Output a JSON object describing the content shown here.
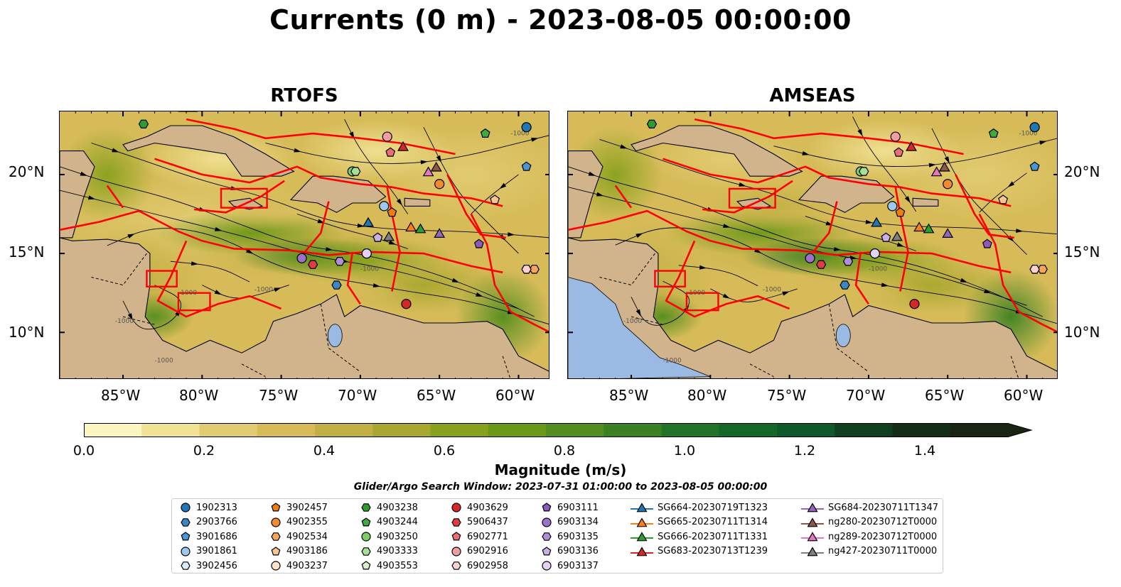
{
  "title": "Currents (0 m) - 2023-08-05 00:00:00",
  "panels": [
    {
      "title": "RTOFS",
      "key": "rtofs"
    },
    {
      "title": "AMSEAS",
      "key": "amseas"
    }
  ],
  "map": {
    "lon_range": [
      -89,
      -58
    ],
    "lat_range": [
      7,
      24
    ],
    "lon_ticks": [
      -85,
      -80,
      -75,
      -70,
      -65,
      -60
    ],
    "lon_tick_labels": [
      "85°W",
      "80°W",
      "75°W",
      "70°W",
      "65°W",
      "60°W"
    ],
    "lat_ticks": [
      10,
      15,
      20
    ],
    "lat_tick_labels": [
      "10°N",
      "15°N",
      "20°N"
    ],
    "land_color": "#d2b48c",
    "no_data_color": "#9ab9e3",
    "eez_line_color": "#ff0000",
    "contour_label": "-1000"
  },
  "colorbar": {
    "label": "Magnitude (m/s)",
    "min": 0.0,
    "max": 1.5,
    "extend": "max",
    "tick_values": [
      0.0,
      0.2,
      0.4,
      0.6,
      0.8,
      1.0,
      1.2,
      1.4
    ],
    "tick_labels": [
      "0.0",
      "0.2",
      "0.4",
      "0.6",
      "0.8",
      "1.0",
      "1.2",
      "1.4"
    ],
    "colors": [
      "#fbf6c0",
      "#f0e193",
      "#e2cc73",
      "#d6bb58",
      "#c3b044",
      "#a8a72f",
      "#88a11c",
      "#6c9818",
      "#538d1d",
      "#3b8122",
      "#217427",
      "#136728",
      "#0e5829",
      "#103f20",
      "#142d18",
      "#1a2414"
    ]
  },
  "search_window": "Glider/Argo Search Window: 2023-07-31 01:00:00 to 2023-08-05 00:00:00",
  "legend": {
    "items": [
      {
        "label": "1902313",
        "marker": "circle",
        "color": "#1f77b4"
      },
      {
        "label": "2903766",
        "marker": "hexagon",
        "color": "#3a87c4"
      },
      {
        "label": "3901686",
        "marker": "pentagon",
        "color": "#4a97d4"
      },
      {
        "label": "3901861",
        "marker": "circle",
        "color": "#9ec8ef"
      },
      {
        "label": "3902456",
        "marker": "hexagon",
        "color": "#d6ecfb"
      },
      {
        "label": "3902457",
        "marker": "pentagon",
        "color": "#ee7d11"
      },
      {
        "label": "4902355",
        "marker": "circle",
        "color": "#f28b30"
      },
      {
        "label": "4902534",
        "marker": "hexagon",
        "color": "#f6a55c"
      },
      {
        "label": "4903186",
        "marker": "pentagon",
        "color": "#f9c592"
      },
      {
        "label": "4903237",
        "marker": "circle",
        "color": "#fde3c8"
      },
      {
        "label": "4903238",
        "marker": "hexagon",
        "color": "#2e9b2e"
      },
      {
        "label": "4903244",
        "marker": "pentagon",
        "color": "#3faa3f"
      },
      {
        "label": "4903250",
        "marker": "circle",
        "color": "#7ccc6a"
      },
      {
        "label": "4903333",
        "marker": "hexagon",
        "color": "#a8e095"
      },
      {
        "label": "4903553",
        "marker": "pentagon",
        "color": "#d6f2c8"
      },
      {
        "label": "4903629",
        "marker": "circle",
        "color": "#d42728"
      },
      {
        "label": "5906437",
        "marker": "hexagon",
        "color": "#de3b44"
      },
      {
        "label": "6902771",
        "marker": "pentagon",
        "color": "#ea6e76"
      },
      {
        "label": "6902916",
        "marker": "circle",
        "color": "#f29ea0"
      },
      {
        "label": "6902958",
        "marker": "hexagon",
        "color": "#fbd2d2"
      },
      {
        "label": "6903111",
        "marker": "pentagon",
        "color": "#8a5bbd"
      },
      {
        "label": "6903134",
        "marker": "circle",
        "color": "#9a72c8"
      },
      {
        "label": "6903135",
        "marker": "hexagon",
        "color": "#b08fd6"
      },
      {
        "label": "6903136",
        "marker": "pentagon",
        "color": "#c8b0e4"
      },
      {
        "label": "6903137",
        "marker": "circle",
        "color": "#e3d2f5"
      },
      {
        "label": "SG664-20230719T1323",
        "marker": "triangle-line",
        "color": "#1f77b4"
      },
      {
        "label": "SG665-20230711T1314",
        "marker": "triangle-line",
        "color": "#ff7f0e"
      },
      {
        "label": "SG666-20230711T1331",
        "marker": "triangle-line",
        "color": "#2ca02c"
      },
      {
        "label": "SG683-20230713T1239",
        "marker": "triangle-line",
        "color": "#d62728"
      },
      {
        "label": "SG684-20230711T1347",
        "marker": "triangle-line",
        "color": "#9467bd"
      },
      {
        "label": "ng280-20230712T0000",
        "marker": "triangle-line",
        "color": "#8c564b"
      },
      {
        "label": "ng289-20230712T0000",
        "marker": "triangle-line",
        "color": "#e377c2"
      },
      {
        "label": "ng427-20230711T0000",
        "marker": "triangle-line",
        "color": "#7f7f7f"
      }
    ]
  },
  "floats": [
    {
      "id": "1902313",
      "lon": -59.5,
      "lat": 23.0
    },
    {
      "id": "2903766",
      "lon": -71.5,
      "lat": 13.0
    },
    {
      "id": "3901686",
      "lon": -59.5,
      "lat": 20.5
    },
    {
      "id": "3901861",
      "lon": -68.5,
      "lat": 18.0
    },
    {
      "id": "3902456",
      "lon": -59.5,
      "lat": 14.0
    },
    {
      "id": "3902457",
      "lon": -68.0,
      "lat": 17.6
    },
    {
      "id": "4902355",
      "lon": -65.0,
      "lat": 19.4
    },
    {
      "id": "4902534",
      "lon": -59.0,
      "lat": 14.0
    },
    {
      "id": "4903186",
      "lon": -61.5,
      "lat": 18.4
    },
    {
      "id": "4903237",
      "lon": -69.6,
      "lat": 15.0
    },
    {
      "id": "4903238",
      "lon": -83.7,
      "lat": 23.2
    },
    {
      "id": "4903244",
      "lon": -62.1,
      "lat": 22.6
    },
    {
      "id": "4903250",
      "lon": -70.5,
      "lat": 20.2
    },
    {
      "id": "4903333",
      "lon": -70.3,
      "lat": 20.2
    },
    {
      "id": "4903553",
      "lon": -68.9,
      "lat": 16.0
    },
    {
      "id": "4903629",
      "lon": -67.1,
      "lat": 11.8
    },
    {
      "id": "5906437",
      "lon": -73.0,
      "lat": 14.3
    },
    {
      "id": "6902771",
      "lon": -68.1,
      "lat": 21.4
    },
    {
      "id": "6902916",
      "lon": -68.3,
      "lat": 22.4
    },
    {
      "id": "6902958",
      "lon": -59.5,
      "lat": 14.0
    },
    {
      "id": "6903111",
      "lon": -62.5,
      "lat": 15.6
    },
    {
      "id": "6903134",
      "lon": -73.7,
      "lat": 14.7
    },
    {
      "id": "6903135",
      "lon": -71.3,
      "lat": 14.5
    },
    {
      "id": "6903136",
      "lon": -68.9,
      "lat": 16.0
    },
    {
      "id": "6903137",
      "lon": -69.6,
      "lat": 15.0
    }
  ],
  "gliders": [
    {
      "id": "SG664-20230719T1323",
      "lon": -69.5,
      "lat": 16.9
    },
    {
      "id": "SG665-20230711T1314",
      "lon": -66.8,
      "lat": 16.6
    },
    {
      "id": "SG666-20230711T1331",
      "lon": -66.2,
      "lat": 16.5
    },
    {
      "id": "SG683-20230713T1239",
      "lon": -67.3,
      "lat": 21.7
    },
    {
      "id": "SG684-20230711T1347",
      "lon": -65.0,
      "lat": 16.2
    },
    {
      "id": "ng280-20230712T0000",
      "lon": -65.2,
      "lat": 20.4
    },
    {
      "id": "ng289-20230712T0000",
      "lon": -65.7,
      "lat": 20.1
    },
    {
      "id": "ng427-20230711T0000",
      "lon": -68.2,
      "lat": 16.0
    }
  ]
}
